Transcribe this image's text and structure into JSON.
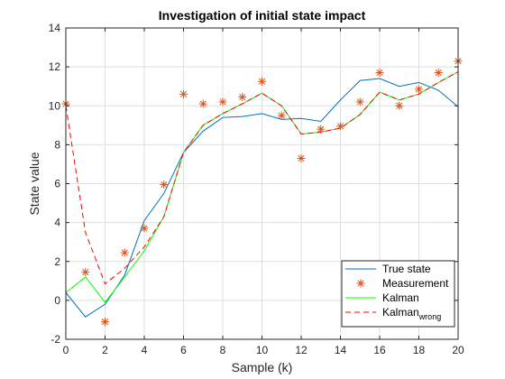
{
  "chart_data": {
    "type": "line",
    "title": "Investigation of initial state impact",
    "xlabel": "Sample (k)",
    "ylabel": "State value",
    "xlim": [
      0,
      20
    ],
    "ylim": [
      -2,
      14
    ],
    "xticks": [
      0,
      2,
      4,
      6,
      8,
      10,
      12,
      14,
      16,
      18,
      20
    ],
    "yticks": [
      -2,
      0,
      2,
      4,
      6,
      8,
      10,
      12,
      14
    ],
    "grid": true,
    "legend_position": "bottom-right",
    "x": [
      0,
      1,
      2,
      3,
      4,
      5,
      6,
      7,
      8,
      9,
      10,
      11,
      12,
      13,
      14,
      15,
      16,
      17,
      18,
      19,
      20
    ],
    "series": [
      {
        "name": "True state",
        "style": "line",
        "color": "#0072BD",
        "values": [
          0.4,
          -0.85,
          -0.2,
          1.3,
          4.1,
          5.5,
          7.6,
          8.7,
          9.4,
          9.45,
          9.6,
          9.3,
          9.35,
          9.2,
          10.3,
          11.3,
          11.4,
          11.0,
          11.2,
          10.8,
          9.95
        ]
      },
      {
        "name": "Measurement",
        "style": "markers",
        "marker": "*",
        "color": "#D95319",
        "values": [
          10.1,
          1.45,
          -1.1,
          2.45,
          3.7,
          5.95,
          10.6,
          10.1,
          10.2,
          10.45,
          11.25,
          9.5,
          7.3,
          8.8,
          8.95,
          10.2,
          11.7,
          10.0,
          10.85,
          11.7,
          12.3
        ]
      },
      {
        "name": "Kalman",
        "style": "line",
        "color": "#00FF00",
        "values": [
          0.4,
          1.2,
          -0.1,
          1.2,
          2.55,
          4.3,
          7.6,
          9.0,
          9.6,
          10.1,
          10.65,
          10.0,
          8.55,
          8.65,
          8.85,
          9.55,
          10.7,
          10.3,
          10.6,
          11.2,
          11.75
        ]
      },
      {
        "name": "Kalman",
        "subscript": "wrong",
        "style": "dashed",
        "color": "#FF0000",
        "values": [
          10.0,
          3.5,
          0.85,
          1.65,
          2.75,
          4.3,
          7.6,
          9.0,
          9.6,
          10.1,
          10.65,
          10.0,
          8.55,
          8.65,
          8.85,
          9.55,
          10.7,
          10.3,
          10.6,
          11.2,
          11.75
        ]
      }
    ]
  }
}
